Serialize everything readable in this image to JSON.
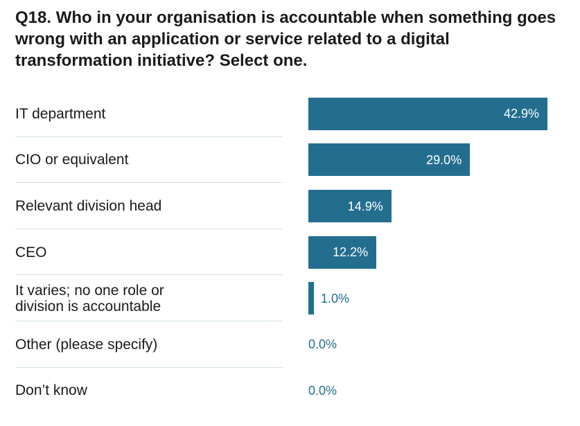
{
  "title": "Q18. Who in your organisation is accountable when something goes wrong with an application or service related to a digital transformation initiative? Select one.",
  "colors": {
    "bar": "#236e8f",
    "label_inside": "#ffffff",
    "label_outside": "#236e8f",
    "divider": "#cfe0e6"
  },
  "chart_data": {
    "type": "bar",
    "orientation": "horizontal",
    "title": "Q18. Who in your organisation is accountable when something goes wrong with an application or service related to a digital transformation initiative? Select one.",
    "categories": [
      "IT department",
      "CIO or equivalent",
      "Relevant division head",
      "CEO",
      "It varies; no one role or\ndivision is accountable",
      "Other (please specify)",
      "Don’t know"
    ],
    "values": [
      42.9,
      29.0,
      14.9,
      12.2,
      1.0,
      0.0,
      0.0
    ],
    "value_labels": [
      "42.9%",
      "29.0%",
      "14.9%",
      "12.2%",
      "1.0%",
      "0.0%",
      "0.0%"
    ],
    "xlim": [
      0,
      42.9
    ],
    "grid": false,
    "legend": "none"
  }
}
